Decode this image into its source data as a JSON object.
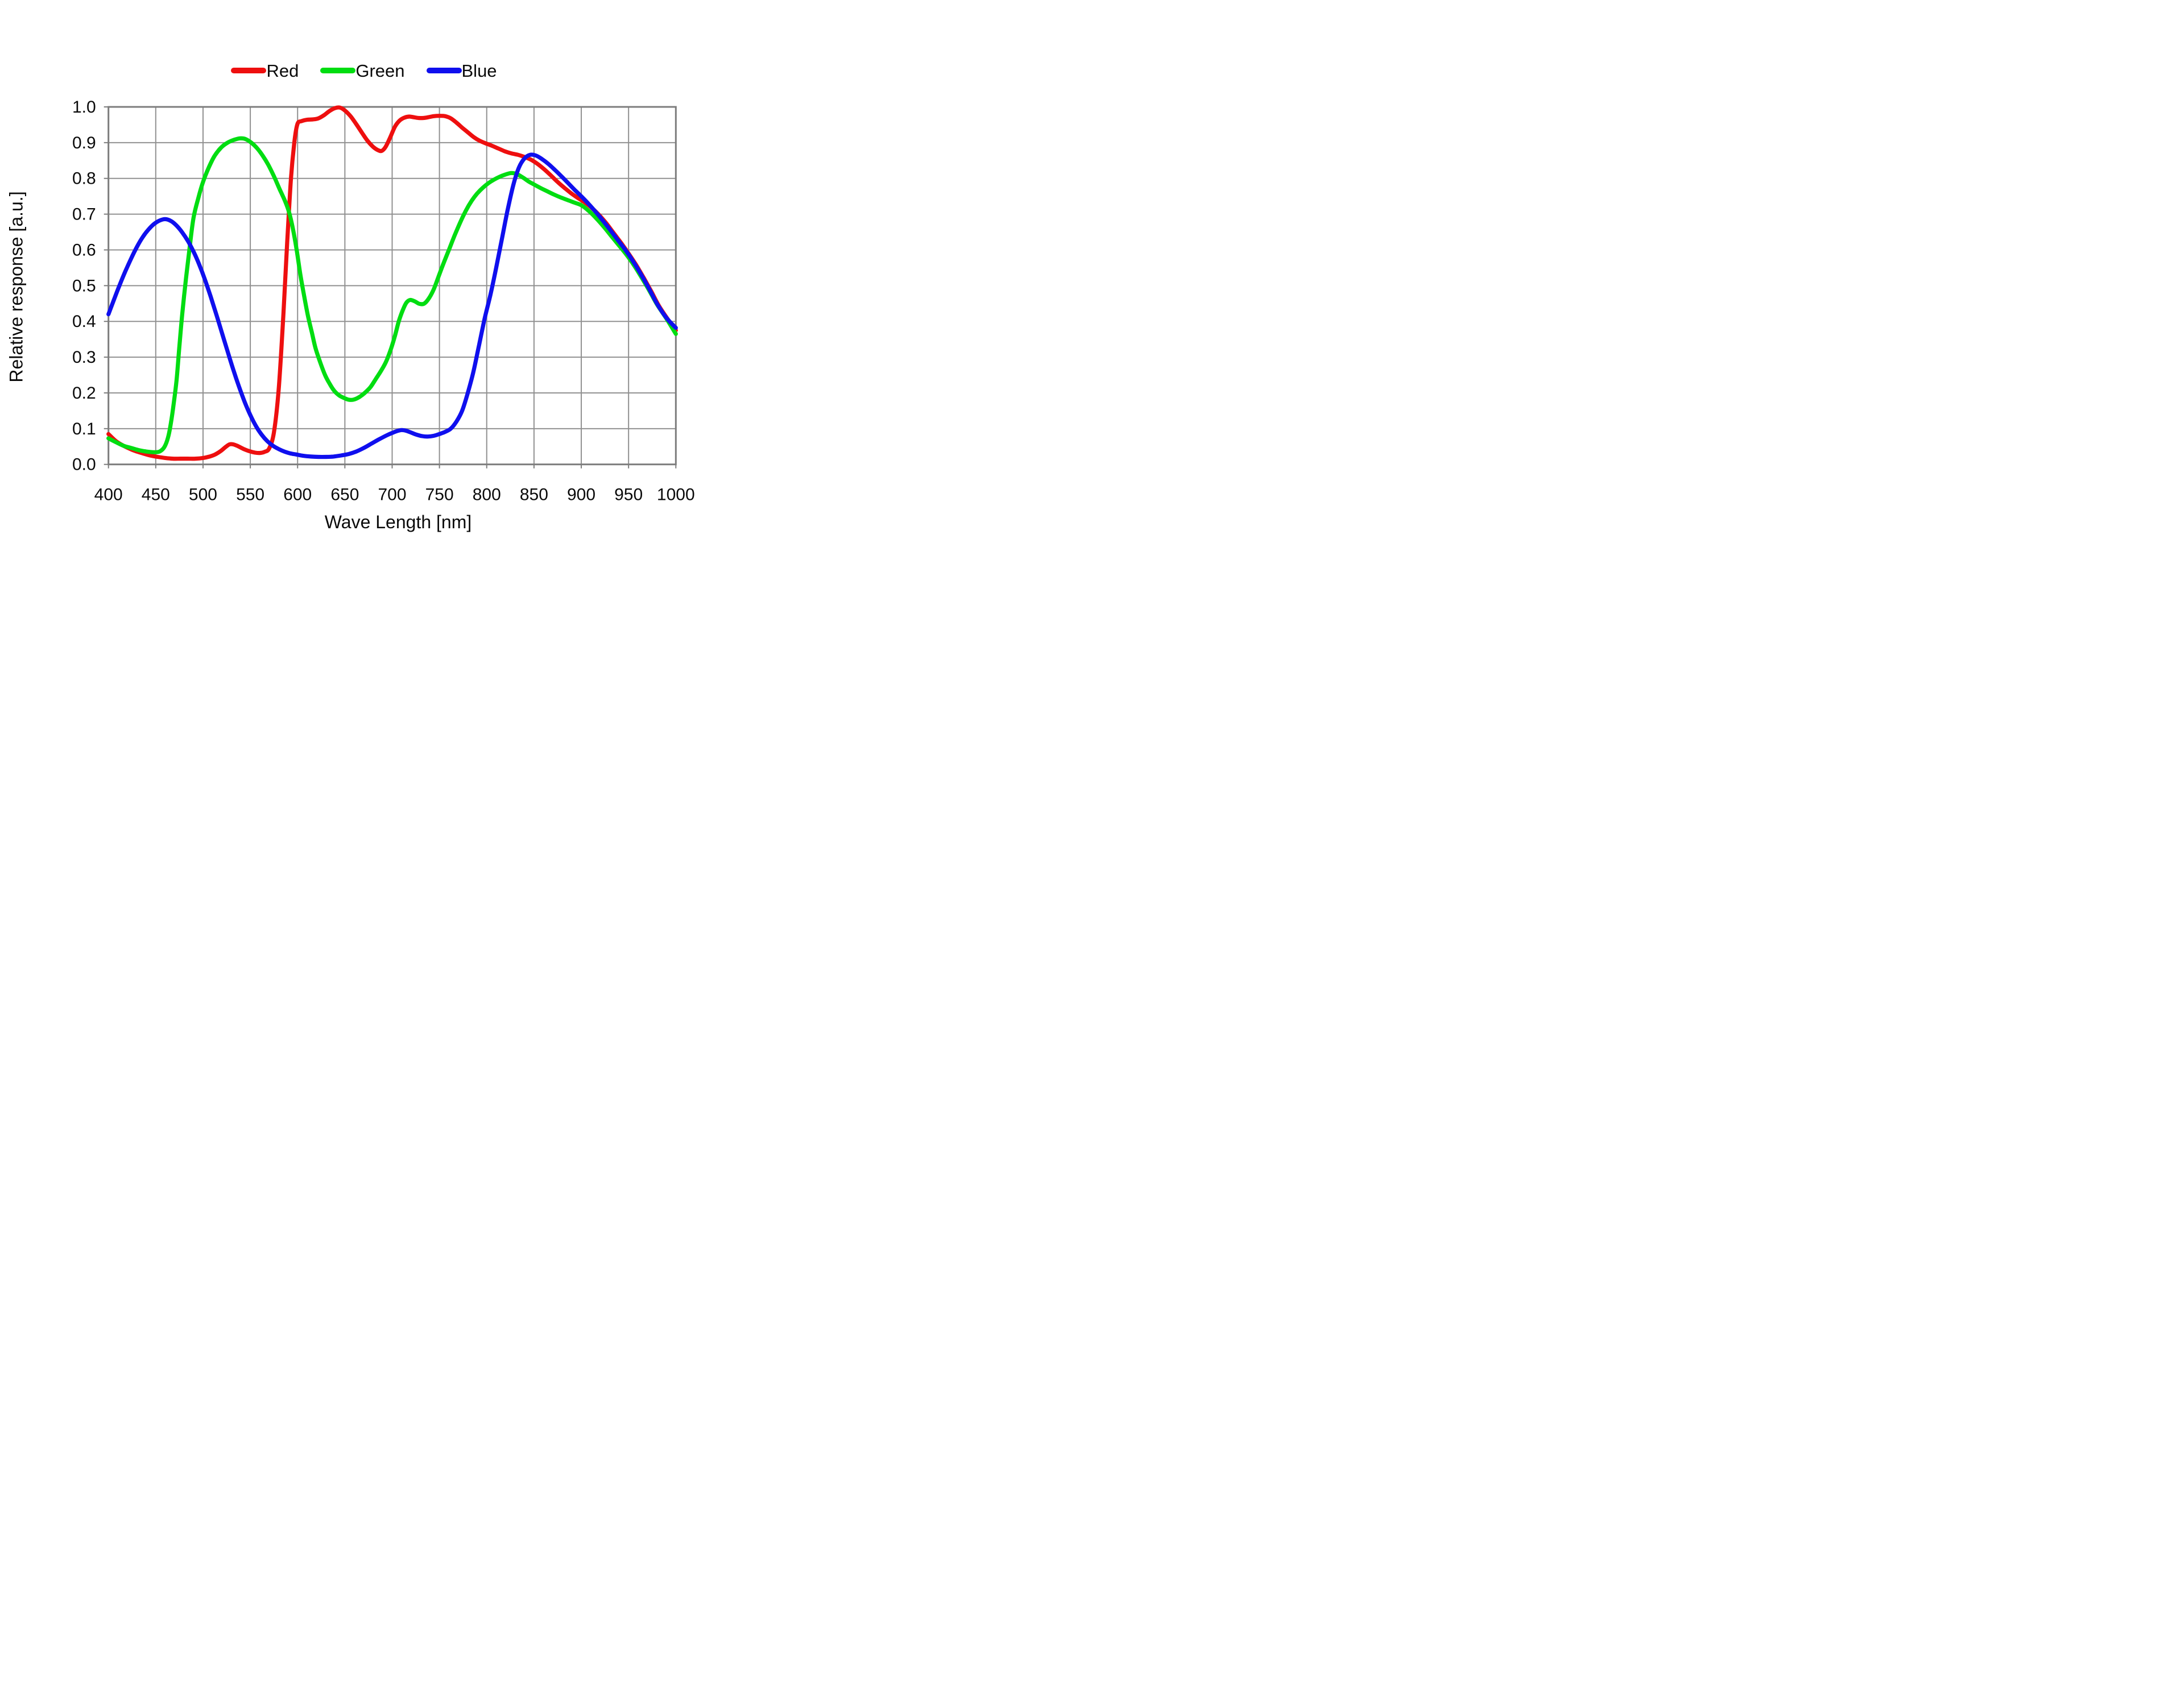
{
  "legend": {
    "items": [
      {
        "label": "Red",
        "color": "#ee0f0f"
      },
      {
        "label": "Green",
        "color": "#00dd11"
      },
      {
        "label": "Blue",
        "color": "#0f0fee"
      }
    ]
  },
  "chart_data": {
    "type": "line",
    "title": "",
    "xlabel": "Wave Length [nm]",
    "ylabel": "Relative response [a.u.]",
    "xlim": [
      400,
      1000
    ],
    "ylim": [
      0.0,
      1.0
    ],
    "grid": true,
    "legend_position": "top-center",
    "grid_color": "#919191",
    "axis_color": "#7d7d7d",
    "text_color": "#0a0a0a",
    "x_ticks": [
      "400",
      "450",
      "500",
      "550",
      "600",
      "650",
      "700",
      "750",
      "800",
      "850",
      "900",
      "950",
      "1000"
    ],
    "y_ticks": [
      "1.0",
      "0.9",
      "0.8",
      "0.7",
      "0.6",
      "0.5",
      "0.4",
      "0.3",
      "0.2",
      "0.1",
      "0.0"
    ],
    "series": [
      {
        "name": "Red",
        "color": "#ee0f0f",
        "points": [
          [
            400,
            0.085
          ],
          [
            408,
            0.065
          ],
          [
            416,
            0.052
          ],
          [
            424,
            0.042
          ],
          [
            430,
            0.036
          ],
          [
            436,
            0.031
          ],
          [
            444,
            0.025
          ],
          [
            452,
            0.021
          ],
          [
            460,
            0.018
          ],
          [
            468,
            0.016
          ],
          [
            476,
            0.016
          ],
          [
            484,
            0.016
          ],
          [
            492,
            0.016
          ],
          [
            500,
            0.018
          ],
          [
            507,
            0.022
          ],
          [
            513,
            0.028
          ],
          [
            519,
            0.038
          ],
          [
            524,
            0.049
          ],
          [
            528,
            0.056
          ],
          [
            532,
            0.056
          ],
          [
            537,
            0.051
          ],
          [
            543,
            0.043
          ],
          [
            549,
            0.037
          ],
          [
            555,
            0.033
          ],
          [
            560,
            0.032
          ],
          [
            565,
            0.035
          ],
          [
            570,
            0.045
          ],
          [
            575,
            0.09
          ],
          [
            580,
            0.21
          ],
          [
            585,
            0.42
          ],
          [
            589,
            0.62
          ],
          [
            593,
            0.8
          ],
          [
            597,
            0.91
          ],
          [
            600,
            0.953
          ],
          [
            604,
            0.96
          ],
          [
            610,
            0.964
          ],
          [
            616,
            0.965
          ],
          [
            622,
            0.968
          ],
          [
            628,
            0.977
          ],
          [
            634,
            0.989
          ],
          [
            640,
            0.997
          ],
          [
            645,
            0.998
          ],
          [
            650,
            0.99
          ],
          [
            656,
            0.974
          ],
          [
            662,
            0.952
          ],
          [
            668,
            0.928
          ],
          [
            674,
            0.905
          ],
          [
            680,
            0.888
          ],
          [
            685,
            0.879
          ],
          [
            689,
            0.877
          ],
          [
            693,
            0.888
          ],
          [
            698,
            0.915
          ],
          [
            703,
            0.945
          ],
          [
            708,
            0.962
          ],
          [
            713,
            0.97
          ],
          [
            718,
            0.973
          ],
          [
            723,
            0.971
          ],
          [
            728,
            0.969
          ],
          [
            733,
            0.969
          ],
          [
            738,
            0.971
          ],
          [
            744,
            0.974
          ],
          [
            750,
            0.975
          ],
          [
            756,
            0.974
          ],
          [
            762,
            0.968
          ],
          [
            768,
            0.956
          ],
          [
            774,
            0.942
          ],
          [
            780,
            0.929
          ],
          [
            786,
            0.916
          ],
          [
            792,
            0.906
          ],
          [
            798,
            0.899
          ],
          [
            805,
            0.892
          ],
          [
            812,
            0.884
          ],
          [
            819,
            0.876
          ],
          [
            826,
            0.87
          ],
          [
            833,
            0.866
          ],
          [
            840,
            0.86
          ],
          [
            847,
            0.852
          ],
          [
            854,
            0.84
          ],
          [
            861,
            0.825
          ],
          [
            868,
            0.808
          ],
          [
            875,
            0.79
          ],
          [
            882,
            0.774
          ],
          [
            889,
            0.759
          ],
          [
            896,
            0.746
          ],
          [
            903,
            0.734
          ],
          [
            910,
            0.72
          ],
          [
            918,
            0.7
          ],
          [
            926,
            0.676
          ],
          [
            934,
            0.648
          ],
          [
            942,
            0.62
          ],
          [
            950,
            0.59
          ],
          [
            958,
            0.558
          ],
          [
            966,
            0.522
          ],
          [
            974,
            0.484
          ],
          [
            982,
            0.444
          ],
          [
            991,
            0.408
          ],
          [
            1000,
            0.375
          ]
        ]
      },
      {
        "name": "Green",
        "color": "#00dd11",
        "points": [
          [
            400,
            0.073
          ],
          [
            408,
            0.062
          ],
          [
            416,
            0.052
          ],
          [
            424,
            0.046
          ],
          [
            432,
            0.04
          ],
          [
            440,
            0.036
          ],
          [
            448,
            0.034
          ],
          [
            454,
            0.036
          ],
          [
            459,
            0.048
          ],
          [
            463,
            0.075
          ],
          [
            466,
            0.115
          ],
          [
            469,
            0.17
          ],
          [
            472,
            0.235
          ],
          [
            475,
            0.33
          ],
          [
            478,
            0.42
          ],
          [
            482,
            0.52
          ],
          [
            486,
            0.61
          ],
          [
            490,
            0.69
          ],
          [
            495,
            0.745
          ],
          [
            500,
            0.79
          ],
          [
            506,
            0.83
          ],
          [
            512,
            0.862
          ],
          [
            519,
            0.886
          ],
          [
            526,
            0.9
          ],
          [
            533,
            0.908
          ],
          [
            539,
            0.912
          ],
          [
            545,
            0.91
          ],
          [
            551,
            0.9
          ],
          [
            557,
            0.885
          ],
          [
            563,
            0.864
          ],
          [
            569,
            0.838
          ],
          [
            575,
            0.806
          ],
          [
            581,
            0.77
          ],
          [
            587,
            0.735
          ],
          [
            591,
            0.705
          ],
          [
            595,
            0.66
          ],
          [
            599,
            0.6
          ],
          [
            603,
            0.53
          ],
          [
            607,
            0.47
          ],
          [
            611,
            0.415
          ],
          [
            615,
            0.37
          ],
          [
            619,
            0.325
          ],
          [
            624,
            0.285
          ],
          [
            629,
            0.25
          ],
          [
            634,
            0.225
          ],
          [
            639,
            0.205
          ],
          [
            644,
            0.193
          ],
          [
            649,
            0.186
          ],
          [
            654,
            0.181
          ],
          [
            659,
            0.181
          ],
          [
            665,
            0.188
          ],
          [
            671,
            0.2
          ],
          [
            677,
            0.216
          ],
          [
            683,
            0.24
          ],
          [
            689,
            0.265
          ],
          [
            694,
            0.29
          ],
          [
            699,
            0.325
          ],
          [
            703,
            0.36
          ],
          [
            707,
            0.4
          ],
          [
            711,
            0.43
          ],
          [
            715,
            0.452
          ],
          [
            719,
            0.46
          ],
          [
            724,
            0.456
          ],
          [
            729,
            0.449
          ],
          [
            734,
            0.45
          ],
          [
            739,
            0.465
          ],
          [
            744,
            0.49
          ],
          [
            749,
            0.525
          ],
          [
            754,
            0.56
          ],
          [
            760,
            0.6
          ],
          [
            766,
            0.64
          ],
          [
            772,
            0.677
          ],
          [
            778,
            0.71
          ],
          [
            784,
            0.737
          ],
          [
            790,
            0.758
          ],
          [
            796,
            0.774
          ],
          [
            802,
            0.787
          ],
          [
            808,
            0.797
          ],
          [
            814,
            0.805
          ],
          [
            820,
            0.811
          ],
          [
            826,
            0.815
          ],
          [
            832,
            0.812
          ],
          [
            838,
            0.803
          ],
          [
            844,
            0.792
          ],
          [
            850,
            0.783
          ],
          [
            857,
            0.773
          ],
          [
            864,
            0.764
          ],
          [
            871,
            0.755
          ],
          [
            878,
            0.747
          ],
          [
            885,
            0.74
          ],
          [
            892,
            0.733
          ],
          [
            900,
            0.725
          ],
          [
            908,
            0.709
          ],
          [
            916,
            0.688
          ],
          [
            924,
            0.664
          ],
          [
            932,
            0.638
          ],
          [
            940,
            0.612
          ],
          [
            948,
            0.586
          ],
          [
            956,
            0.556
          ],
          [
            964,
            0.522
          ],
          [
            972,
            0.486
          ],
          [
            980,
            0.448
          ],
          [
            990,
            0.408
          ],
          [
            1000,
            0.365
          ]
        ]
      },
      {
        "name": "Blue",
        "color": "#0f0fee",
        "points": [
          [
            400,
            0.42
          ],
          [
            406,
            0.462
          ],
          [
            412,
            0.503
          ],
          [
            418,
            0.541
          ],
          [
            424,
            0.576
          ],
          [
            430,
            0.608
          ],
          [
            436,
            0.635
          ],
          [
            442,
            0.656
          ],
          [
            448,
            0.672
          ],
          [
            454,
            0.682
          ],
          [
            460,
            0.686
          ],
          [
            466,
            0.681
          ],
          [
            472,
            0.668
          ],
          [
            478,
            0.649
          ],
          [
            484,
            0.625
          ],
          [
            490,
            0.595
          ],
          [
            496,
            0.559
          ],
          [
            502,
            0.517
          ],
          [
            508,
            0.47
          ],
          [
            514,
            0.42
          ],
          [
            520,
            0.368
          ],
          [
            526,
            0.316
          ],
          [
            532,
            0.265
          ],
          [
            538,
            0.218
          ],
          [
            544,
            0.175
          ],
          [
            550,
            0.138
          ],
          [
            556,
            0.107
          ],
          [
            562,
            0.083
          ],
          [
            568,
            0.065
          ],
          [
            574,
            0.052
          ],
          [
            580,
            0.043
          ],
          [
            586,
            0.036
          ],
          [
            592,
            0.031
          ],
          [
            598,
            0.028
          ],
          [
            606,
            0.024
          ],
          [
            614,
            0.022
          ],
          [
            622,
            0.021
          ],
          [
            630,
            0.021
          ],
          [
            638,
            0.022
          ],
          [
            646,
            0.025
          ],
          [
            654,
            0.029
          ],
          [
            662,
            0.036
          ],
          [
            670,
            0.046
          ],
          [
            678,
            0.058
          ],
          [
            686,
            0.07
          ],
          [
            694,
            0.081
          ],
          [
            700,
            0.088
          ],
          [
            705,
            0.093
          ],
          [
            710,
            0.096
          ],
          [
            715,
            0.094
          ],
          [
            720,
            0.089
          ],
          [
            726,
            0.083
          ],
          [
            732,
            0.079
          ],
          [
            738,
            0.078
          ],
          [
            744,
            0.08
          ],
          [
            750,
            0.085
          ],
          [
            756,
            0.091
          ],
          [
            762,
            0.1
          ],
          [
            768,
            0.12
          ],
          [
            774,
            0.15
          ],
          [
            780,
            0.2
          ],
          [
            786,
            0.26
          ],
          [
            792,
            0.335
          ],
          [
            798,
            0.41
          ],
          [
            804,
            0.475
          ],
          [
            810,
            0.55
          ],
          [
            816,
            0.63
          ],
          [
            822,
            0.71
          ],
          [
            828,
            0.78
          ],
          [
            834,
            0.83
          ],
          [
            840,
            0.856
          ],
          [
            846,
            0.866
          ],
          [
            852,
            0.864
          ],
          [
            858,
            0.855
          ],
          [
            865,
            0.841
          ],
          [
            872,
            0.824
          ],
          [
            879,
            0.806
          ],
          [
            886,
            0.787
          ],
          [
            893,
            0.768
          ],
          [
            900,
            0.75
          ],
          [
            908,
            0.728
          ],
          [
            916,
            0.704
          ],
          [
            924,
            0.678
          ],
          [
            932,
            0.651
          ],
          [
            940,
            0.623
          ],
          [
            948,
            0.595
          ],
          [
            956,
            0.563
          ],
          [
            964,
            0.528
          ],
          [
            972,
            0.49
          ],
          [
            980,
            0.45
          ],
          [
            990,
            0.41
          ],
          [
            1000,
            0.382
          ]
        ]
      }
    ]
  }
}
